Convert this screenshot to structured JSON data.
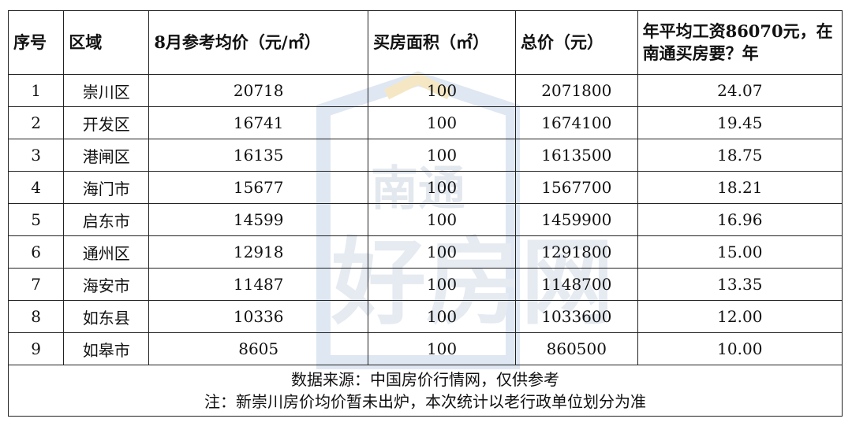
{
  "watermark": {
    "line1": "南通",
    "line2": "好房网"
  },
  "table": {
    "headers": [
      "序号",
      "区域",
      "8月参考均价（元/㎡）",
      "买房面积（㎡）",
      "总价（元）",
      "年平均工资86070元，在南通买房要？年"
    ],
    "rows": [
      [
        "1",
        "崇川区",
        "20718",
        "100",
        "2071800",
        "24.07"
      ],
      [
        "2",
        "开发区",
        "16741",
        "100",
        "1674100",
        "19.45"
      ],
      [
        "3",
        "港闸区",
        "16135",
        "100",
        "1613500",
        "18.75"
      ],
      [
        "4",
        "海门市",
        "15677",
        "100",
        "1567700",
        "18.21"
      ],
      [
        "5",
        "启东市",
        "14599",
        "100",
        "1459900",
        "16.96"
      ],
      [
        "6",
        "通州区",
        "12918",
        "100",
        "1291800",
        "15.00"
      ],
      [
        "7",
        "海安市",
        "11487",
        "100",
        "1148700",
        "13.35"
      ],
      [
        "8",
        "如东县",
        "10336",
        "100",
        "1033600",
        "12.00"
      ],
      [
        "9",
        "如皋市",
        "8605",
        "100",
        "860500",
        "10.00"
      ]
    ],
    "footer": {
      "source": "数据来源：中国房价行情网，仅供参考",
      "note": "注：新崇川房价均价暂未出炉，本次统计以老行政单位划分为准"
    }
  }
}
